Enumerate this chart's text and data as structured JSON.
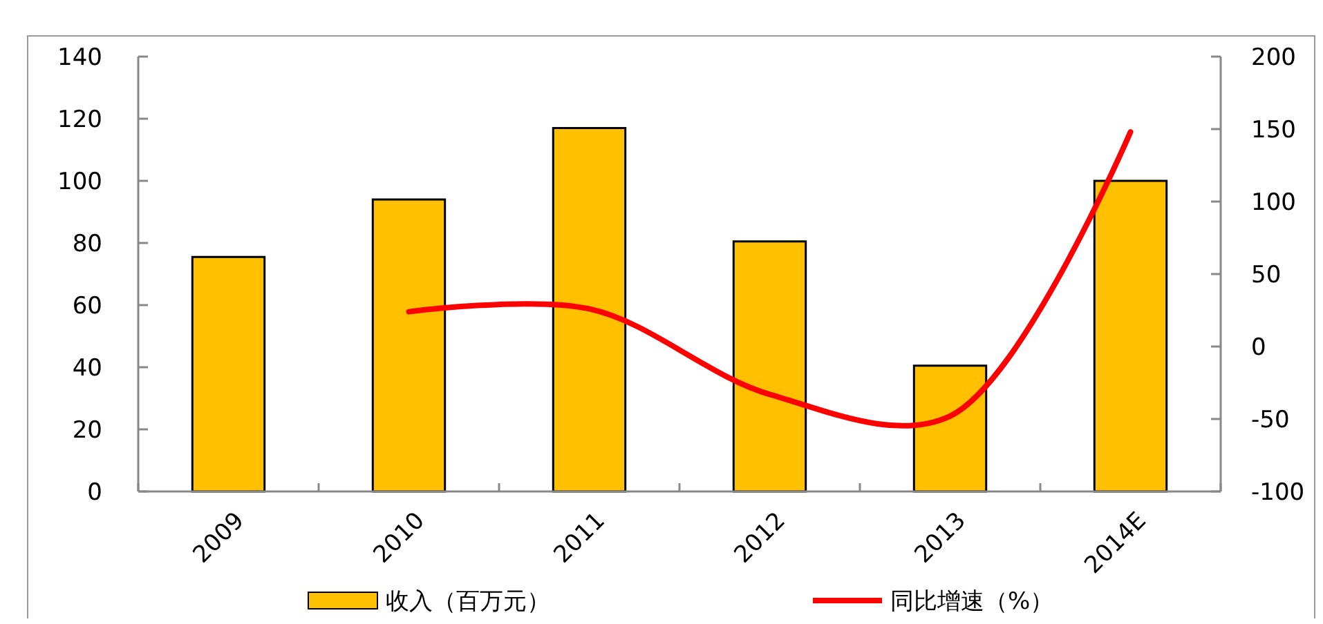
{
  "chart_data": {
    "type": "bar",
    "categories": [
      "2009",
      "2010",
      "2011",
      "2012",
      "2013",
      "2014E"
    ],
    "series": [
      {
        "name": "收入（百万元）",
        "color": "#ffc000",
        "values": [
          75.5,
          94,
          117,
          80.5,
          40.5,
          100
        ]
      },
      {
        "name": "同比增速（%）",
        "type": "line",
        "axis": "y2",
        "color": "#ff0000",
        "values": [
          null,
          24,
          26,
          -33,
          -48,
          148
        ]
      }
    ],
    "ylim": [
      0,
      140
    ],
    "yticks": [
      0,
      20,
      40,
      60,
      80,
      100,
      120,
      140
    ],
    "y2lim": [
      -100,
      200
    ],
    "y2ticks": [
      -100,
      -50,
      0,
      50,
      100,
      150,
      200
    ],
    "grid": false,
    "legend": "bottom",
    "marker": "none",
    "line_style": "solid"
  }
}
